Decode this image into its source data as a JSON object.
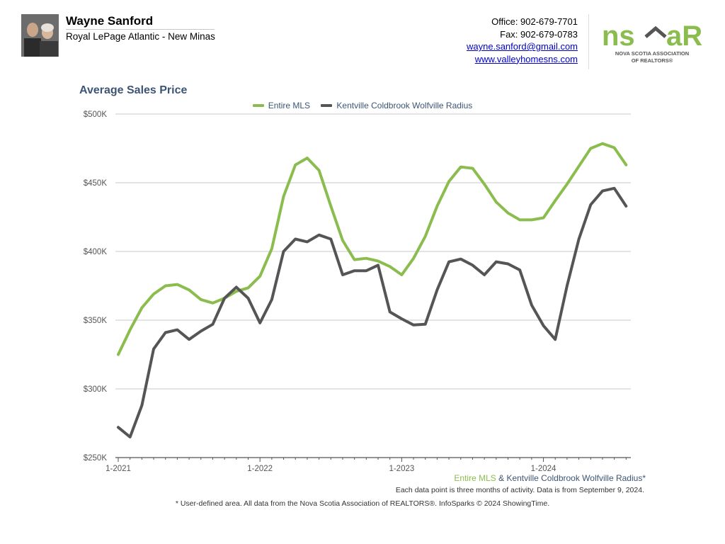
{
  "header": {
    "agent_name": "Wayne Sanford",
    "company": "Royal LePage Atlantic - New Minas",
    "office": "Office: 902-679-7701",
    "fax": "Fax: 902-679-0783",
    "email": "wayne.sanford@gmail.com",
    "website": "www.valleyhomesns.com",
    "logo": {
      "mark_left": "ns",
      "mark_right": "aR",
      "line1": "NOVA SCOTIA ASSOCIATION",
      "line2": "OF REALTORS®"
    }
  },
  "colors": {
    "green": "#8bbd4e",
    "gray": "#555555",
    "title": "#3d5575"
  },
  "footer": {
    "series_green": "Entire MLS",
    "series_amp": " & ",
    "series_gray": "Kentville Coldbrook Wolfville Radius*",
    "note": "Each data point is three months of activity. Data is from September 9, 2024.",
    "disclaimer": "* User-defined area. All data from the Nova Scotia Association of REALTORS®. InfoSparks © 2024 ShowingTime."
  },
  "chart_data": {
    "type": "line",
    "title": "Average Sales Price",
    "xlabel": "",
    "ylabel": "",
    "ylim": [
      250000,
      500000
    ],
    "yticks": [
      250000,
      300000,
      350000,
      400000,
      450000,
      500000
    ],
    "ytick_labels": [
      "$250K",
      "$300K",
      "$350K",
      "$400K",
      "$450K",
      "$500K"
    ],
    "xtick_labels": [
      "1-2021",
      "1-2022",
      "1-2023",
      "1-2024"
    ],
    "x_start": "1-2021",
    "x_step": "1 month",
    "grid": true,
    "legend_position": "top-center",
    "series": [
      {
        "name": "Entire MLS",
        "color": "#8bbd4e",
        "values": [
          325000,
          343000,
          359000,
          369000,
          375000,
          376000,
          372000,
          365000,
          362500,
          366000,
          371000,
          373500,
          382000,
          402000,
          440000,
          463000,
          468000,
          459000,
          433000,
          408000,
          394000,
          395000,
          393000,
          389000,
          383000,
          395000,
          411000,
          433000,
          451000,
          461500,
          460500,
          449000,
          436000,
          428000,
          423000,
          423000,
          424500,
          437000,
          449000,
          462000,
          475000,
          478500,
          475500,
          463000
        ]
      },
      {
        "name": "Kentville Coldbrook Wolfville Radius",
        "color": "#555555",
        "values": [
          272000,
          265000,
          288000,
          329000,
          341000,
          343000,
          336000,
          342000,
          347000,
          366000,
          374000,
          366000,
          348000,
          365000,
          400000,
          409000,
          407000,
          412000,
          409000,
          383000,
          386000,
          386000,
          390000,
          356000,
          351000,
          346500,
          347000,
          372000,
          392500,
          394500,
          390000,
          383000,
          392500,
          391000,
          386500,
          361000,
          346000,
          336000,
          375000,
          409000,
          434000,
          444000,
          446000,
          433000
        ]
      }
    ]
  }
}
